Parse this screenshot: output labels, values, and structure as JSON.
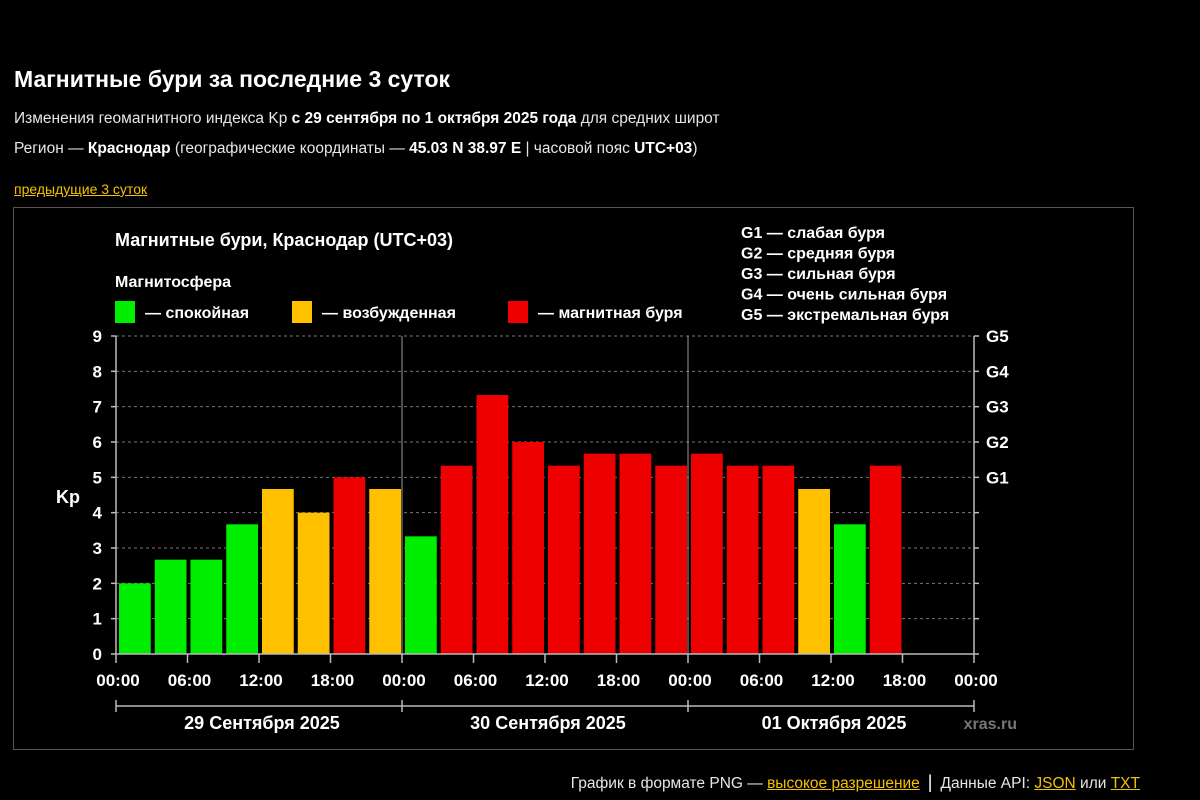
{
  "page": {
    "title": "Магнитные бури за последние 3 суток",
    "line1": {
      "prefix": "Изменения геомагнитного индекса Kp ",
      "bold": "с 29 сентября по 1 октября 2025 года",
      "suffix": " для средних широт"
    },
    "line2": {
      "prefix": "Регион — ",
      "region": "Краснодар",
      "mid": " (географические координаты — ",
      "coords": "45.03 N 38.97 E",
      "mid2": " | часовой пояс ",
      "tz": "UTC+03",
      "end": ")"
    },
    "prev_link": "предыдущие 3 суток",
    "footer": {
      "png_text": "График в формате PNG — ",
      "hires_link": "высокое разрешение",
      "sep": "|",
      "api_text": "Данные API: ",
      "json_link": "JSON",
      "or_text": " или ",
      "txt_link": "TXT"
    }
  },
  "chart_data": {
    "type": "bar",
    "title": "Магнитные бури, Краснодар (UTC+03)",
    "ylabel": "Kp",
    "ylim": [
      0,
      9
    ],
    "y_ticks": [
      "0",
      "1",
      "2",
      "3",
      "4",
      "5",
      "6",
      "7",
      "8",
      "9"
    ],
    "grid": "dashed horizontal",
    "legend_title": "Магнитосфера",
    "legend": [
      {
        "label": "— спокойная",
        "color": "#00ee00"
      },
      {
        "label": "— возбужденная",
        "color": "#ffc000"
      },
      {
        "label": "— магнитная буря",
        "color": "#ee0000"
      }
    ],
    "storm_legend": [
      "G1 — слабая буря",
      "G2 — средняя буря",
      "G3 — сильная буря",
      "G4 — очень сильная буря",
      "G5 — экстремальная буря"
    ],
    "right_axis": [
      {
        "label": "G1",
        "kp": 5
      },
      {
        "label": "G2",
        "kp": 6
      },
      {
        "label": "G3",
        "kp": 7
      },
      {
        "label": "G4",
        "kp": 8
      },
      {
        "label": "G5",
        "kp": 9
      }
    ],
    "x_ticks": [
      "00:00",
      "06:00",
      "12:00",
      "18:00",
      "00:00",
      "06:00",
      "12:00",
      "18:00",
      "00:00",
      "06:00",
      "12:00",
      "18:00",
      "00:00"
    ],
    "days": [
      "29 Сентября 2025",
      "30 Сентября 2025",
      "01 Октября 2025"
    ],
    "interval_hours": 3,
    "values": [
      2.0,
      2.67,
      2.67,
      3.67,
      4.67,
      4.0,
      5.0,
      4.67,
      3.33,
      5.33,
      7.33,
      6.0,
      5.33,
      5.67,
      5.67,
      5.33,
      5.67,
      5.33,
      5.33,
      4.67,
      3.67,
      5.33
    ],
    "colors": {
      "quiet": "#00ee00",
      "active": "#ffc000",
      "storm": "#ee0000"
    },
    "watermark": "xras.ru"
  }
}
